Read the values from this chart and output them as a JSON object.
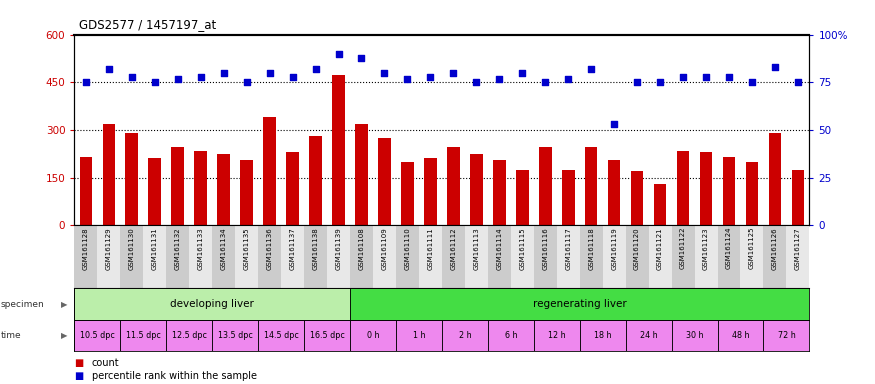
{
  "title": "GDS2577 / 1457197_at",
  "bar_color": "#cc0000",
  "dot_color": "#0000cc",
  "gsm_labels": [
    "GSM161128",
    "GSM161129",
    "GSM161130",
    "GSM161131",
    "GSM161132",
    "GSM161133",
    "GSM161134",
    "GSM161135",
    "GSM161136",
    "GSM161137",
    "GSM161138",
    "GSM161139",
    "GSM161108",
    "GSM161109",
    "GSM161110",
    "GSM161111",
    "GSM161112",
    "GSM161113",
    "GSM161114",
    "GSM161115",
    "GSM161116",
    "GSM161117",
    "GSM161118",
    "GSM161119",
    "GSM161120",
    "GSM161121",
    "GSM161122",
    "GSM161123",
    "GSM161124",
    "GSM161125",
    "GSM161126",
    "GSM161127"
  ],
  "bar_values": [
    215,
    320,
    290,
    210,
    245,
    235,
    225,
    205,
    340,
    230,
    280,
    475,
    320,
    275,
    200,
    210,
    245,
    225,
    205,
    175,
    245,
    175,
    245,
    205,
    170,
    130,
    235,
    230,
    215,
    200,
    290,
    175
  ],
  "dot_pct": [
    75,
    82,
    78,
    75,
    77,
    78,
    80,
    75,
    80,
    78,
    82,
    90,
    88,
    80,
    77,
    78,
    80,
    75,
    77,
    80,
    75,
    77,
    82,
    53,
    75,
    75,
    78,
    78,
    78,
    75,
    83,
    75
  ],
  "ylim_left": [
    0,
    600
  ],
  "ylim_right": [
    0,
    100
  ],
  "yticks_left": [
    0,
    150,
    300,
    450,
    600
  ],
  "ytick_labels_left": [
    "0",
    "150",
    "300",
    "450",
    "600"
  ],
  "yticks_right": [
    0,
    25,
    50,
    75,
    100
  ],
  "ytick_labels_right": [
    "0",
    "25",
    "50",
    "75",
    "100%"
  ],
  "hlines": [
    150,
    300,
    450
  ],
  "specimen_groups": [
    {
      "label": "developing liver",
      "color": "#bbeeaa",
      "start": 0,
      "end": 12
    },
    {
      "label": "regenerating liver",
      "color": "#44dd44",
      "start": 12,
      "end": 32
    }
  ],
  "time_groups": [
    {
      "label": "10.5 dpc",
      "start": 0,
      "end": 2
    },
    {
      "label": "11.5 dpc",
      "start": 2,
      "end": 4
    },
    {
      "label": "12.5 dpc",
      "start": 4,
      "end": 6
    },
    {
      "label": "13.5 dpc",
      "start": 6,
      "end": 8
    },
    {
      "label": "14.5 dpc",
      "start": 8,
      "end": 10
    },
    {
      "label": "16.5 dpc",
      "start": 10,
      "end": 12
    },
    {
      "label": "0 h",
      "start": 12,
      "end": 14
    },
    {
      "label": "1 h",
      "start": 14,
      "end": 16
    },
    {
      "label": "2 h",
      "start": 16,
      "end": 18
    },
    {
      "label": "6 h",
      "start": 18,
      "end": 20
    },
    {
      "label": "12 h",
      "start": 20,
      "end": 22
    },
    {
      "label": "18 h",
      "start": 22,
      "end": 24
    },
    {
      "label": "24 h",
      "start": 24,
      "end": 26
    },
    {
      "label": "30 h",
      "start": 26,
      "end": 28
    },
    {
      "label": "48 h",
      "start": 28,
      "end": 30
    },
    {
      "label": "72 h",
      "start": 30,
      "end": 32
    }
  ],
  "time_color": "#ee88ee",
  "tick_bg_even": "#cccccc",
  "tick_bg_odd": "#e8e8e8"
}
